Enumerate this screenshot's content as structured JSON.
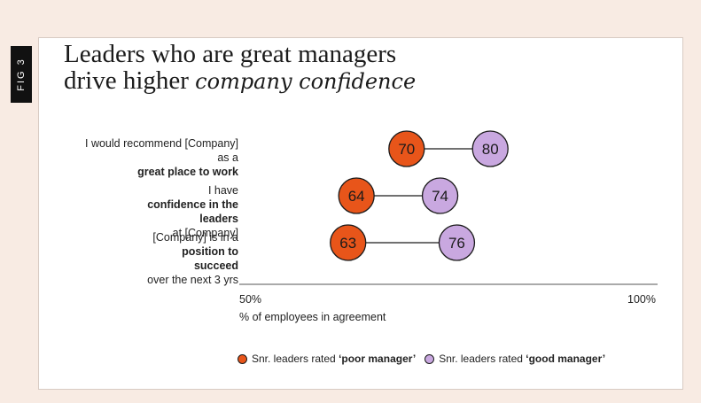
{
  "fig_tag": "FIG 3",
  "title_line1": "Leaders who are great managers",
  "title_line2_plain": "drive higher",
  "title_line2_accent": "company confidence",
  "colors": {
    "poor": "#e8551a",
    "good": "#c9a8e0",
    "line": "#1b1b1b",
    "axis": "#555555"
  },
  "rows": [
    {
      "l1": "I would recommend [Company]",
      "l2_plain": "as a ",
      "l2_bold": "great place to work",
      "l2_tail": ""
    },
    {
      "l1_plain": "I have ",
      "l1_bold": "confidence in the",
      "l2_bold": "leaders",
      "l2_tail": " at [Company]"
    },
    {
      "l1_plain": "[Company] is in a ",
      "l1_bold": "position to",
      "l2_bold": "succeed",
      "l2_tail": " over the next 3 yrs"
    }
  ],
  "chart_data": {
    "type": "dumbbell",
    "categories": [
      "I would recommend [Company] as a great place to work",
      "I have confidence in the leaders at [Company]",
      "[Company] is in a position to succeed over the next 3 yrs"
    ],
    "series": [
      {
        "name": "Snr. leaders rated 'poor manager'",
        "values": [
          70,
          64,
          63
        ]
      },
      {
        "name": "Snr. leaders rated 'good manager'",
        "values": [
          80,
          74,
          76
        ]
      }
    ],
    "xlim": [
      50,
      100
    ],
    "xtick_labels": [
      "50%",
      "100%"
    ],
    "xlabel": "% of employees in agreement"
  },
  "legend": {
    "poor_plain": "Snr. leaders rated ",
    "poor_bold": "‘poor manager’",
    "good_plain": "Snr. leaders rated ",
    "good_bold": "‘good manager’"
  }
}
